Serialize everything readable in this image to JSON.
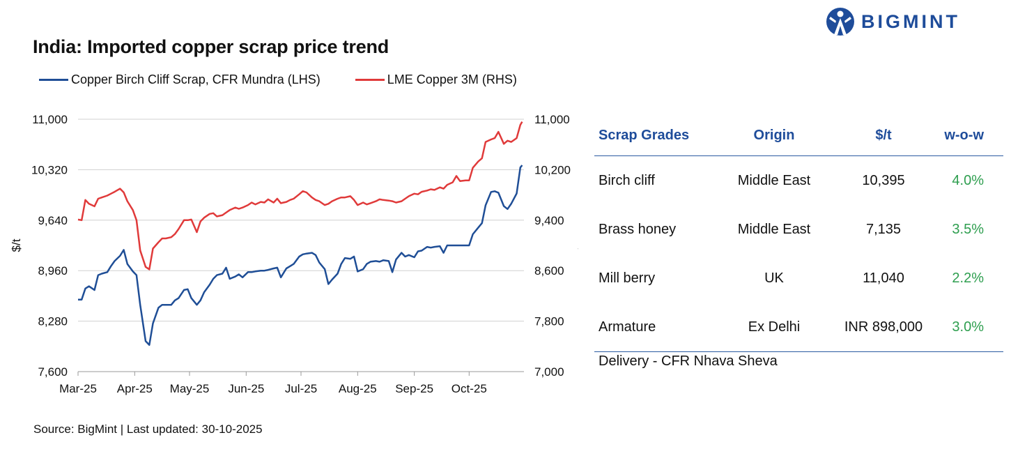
{
  "header": {
    "title": "India: Imported copper scrap price trend",
    "brand": "BIGMINT",
    "brand_color": "#1e4c9a"
  },
  "chart_data": {
    "type": "line",
    "title": "India: Imported copper scrap price trend",
    "x": [
      "2025-03-01",
      "2025-03-03",
      "2025-03-05",
      "2025-03-07",
      "2025-03-10",
      "2025-03-12",
      "2025-03-14",
      "2025-03-17",
      "2025-03-19",
      "2025-03-21",
      "2025-03-24",
      "2025-03-26",
      "2025-03-28",
      "2025-03-31",
      "2025-04-02",
      "2025-04-04",
      "2025-04-07",
      "2025-04-09",
      "2025-04-11",
      "2025-04-14",
      "2025-04-16",
      "2025-04-18",
      "2025-04-21",
      "2025-04-23",
      "2025-04-25",
      "2025-04-28",
      "2025-04-30",
      "2025-05-02",
      "2025-05-05",
      "2025-05-07",
      "2025-05-09",
      "2025-05-12",
      "2025-05-14",
      "2025-05-16",
      "2025-05-19",
      "2025-05-21",
      "2025-05-23",
      "2025-05-26",
      "2025-05-28",
      "2025-05-30",
      "2025-06-02",
      "2025-06-04",
      "2025-06-06",
      "2025-06-09",
      "2025-06-11",
      "2025-06-13",
      "2025-06-16",
      "2025-06-18",
      "2025-06-20",
      "2025-06-23",
      "2025-06-25",
      "2025-06-27",
      "2025-06-30",
      "2025-07-02",
      "2025-07-04",
      "2025-07-07",
      "2025-07-09",
      "2025-07-11",
      "2025-07-14",
      "2025-07-16",
      "2025-07-18",
      "2025-07-21",
      "2025-07-23",
      "2025-07-25",
      "2025-07-28",
      "2025-07-30",
      "2025-08-01",
      "2025-08-04",
      "2025-08-06",
      "2025-08-08",
      "2025-08-11",
      "2025-08-13",
      "2025-08-15",
      "2025-08-18",
      "2025-08-20",
      "2025-08-22",
      "2025-08-25",
      "2025-08-27",
      "2025-08-29",
      "2025-09-01",
      "2025-09-03",
      "2025-09-05",
      "2025-09-08",
      "2025-09-10",
      "2025-09-12",
      "2025-09-15",
      "2025-09-17",
      "2025-09-19",
      "2025-09-22",
      "2025-09-24",
      "2025-09-26",
      "2025-09-29",
      "2025-10-01",
      "2025-10-03",
      "2025-10-06",
      "2025-10-08",
      "2025-10-10",
      "2025-10-13",
      "2025-10-15",
      "2025-10-17",
      "2025-10-20",
      "2025-10-22",
      "2025-10-24",
      "2025-10-27",
      "2025-10-29",
      "2025-10-30"
    ],
    "x_tick_labels": [
      "Mar-25",
      "Apr-25",
      "May-25",
      "Jun-25",
      "Jul-25",
      "Aug-25",
      "Sep-25",
      "Oct-25"
    ],
    "x_tick_dates": [
      "2025-03-01",
      "2025-04-01",
      "2025-05-01",
      "2025-06-01",
      "2025-07-01",
      "2025-08-01",
      "2025-09-01",
      "2025-10-01"
    ],
    "xlim": [
      "2025-03-01",
      "2025-10-31"
    ],
    "y_left": {
      "label": "$/t",
      "ylim": [
        7600,
        11000
      ],
      "ticks": [
        7600,
        8280,
        8960,
        9640,
        10320,
        11000
      ],
      "tick_labels": [
        "7,600",
        "8,280",
        "8,960",
        "9,640",
        "10,320",
        "11,000"
      ]
    },
    "y_right": {
      "label": "$/t",
      "ylim": [
        7000,
        11000
      ],
      "ticks": [
        7000,
        7800,
        8600,
        9400,
        10200,
        11000
      ],
      "tick_labels": [
        "7,000",
        "7,800",
        "8,600",
        "9,400",
        "10,200",
        "11,000"
      ]
    },
    "grid": "horizontal",
    "legend_position": "top-left",
    "series": [
      {
        "name": "Copper Birch Cliff Scrap, CFR Mundra (LHS)",
        "axis": "left",
        "color": "#1f4e96",
        "values": [
          8570,
          8570,
          8720,
          8750,
          8700,
          8900,
          8920,
          8940,
          9020,
          9090,
          9160,
          9240,
          9050,
          8950,
          8900,
          8500,
          8010,
          7960,
          8250,
          8460,
          8500,
          8500,
          8500,
          8560,
          8590,
          8700,
          8710,
          8590,
          8500,
          8560,
          8670,
          8770,
          8850,
          8900,
          8920,
          9000,
          8850,
          8880,
          8910,
          8870,
          8940,
          8940,
          8950,
          8960,
          8960,
          8970,
          8990,
          9000,
          8870,
          8990,
          9020,
          9050,
          9150,
          9180,
          9190,
          9200,
          9170,
          9070,
          8980,
          8780,
          8840,
          8920,
          9050,
          9130,
          9120,
          9150,
          8950,
          8980,
          9050,
          9080,
          9090,
          9080,
          9100,
          9090,
          8940,
          9110,
          9200,
          9150,
          9170,
          9140,
          9220,
          9230,
          9280,
          9270,
          9280,
          9290,
          9200,
          9300,
          9300,
          9300,
          9300,
          9300,
          9300,
          9450,
          9540,
          9600,
          9840,
          10020,
          10030,
          10010,
          9830,
          9790,
          9860,
          10000,
          10350,
          10380
        ]
      },
      {
        "name": "LME Copper 3M (RHS)",
        "axis": "right",
        "color": "#e03a3a",
        "values": [
          9410,
          9400,
          9720,
          9660,
          9620,
          9740,
          9760,
          9790,
          9820,
          9850,
          9900,
          9840,
          9700,
          9560,
          9400,
          8920,
          8660,
          8620,
          8950,
          9050,
          9110,
          9110,
          9130,
          9180,
          9260,
          9400,
          9400,
          9410,
          9210,
          9380,
          9440,
          9500,
          9510,
          9460,
          9480,
          9520,
          9560,
          9600,
          9580,
          9600,
          9640,
          9680,
          9650,
          9690,
          9680,
          9730,
          9680,
          9740,
          9670,
          9690,
          9720,
          9740,
          9810,
          9860,
          9840,
          9760,
          9720,
          9700,
          9640,
          9660,
          9700,
          9740,
          9760,
          9760,
          9780,
          9720,
          9640,
          9680,
          9650,
          9670,
          9700,
          9730,
          9720,
          9710,
          9700,
          9680,
          9700,
          9740,
          9780,
          9820,
          9810,
          9850,
          9870,
          9890,
          9880,
          9920,
          9900,
          9960,
          10000,
          10100,
          10020,
          10030,
          10030,
          10230,
          10330,
          10380,
          10640,
          10680,
          10700,
          10800,
          10610,
          10660,
          10640,
          10700,
          10910,
          10960
        ]
      }
    ]
  },
  "table": {
    "headers": {
      "grade": "Scrap Grades",
      "origin": "Origin",
      "price": "$/t",
      "wow": "w-o-w"
    },
    "rows": [
      {
        "grade": "Birch cliff",
        "origin": "Middle East",
        "price": "10,395",
        "wow": "4.0%"
      },
      {
        "grade": "Brass honey",
        "origin": "Middle East",
        "price": "7,135",
        "wow": "3.5%"
      },
      {
        "grade": "Mill berry",
        "origin": "UK",
        "price": "11,040",
        "wow": "2.2%"
      },
      {
        "grade": "Armature",
        "origin": "Ex Delhi",
        "price": "INR 898,000",
        "wow": "3.0%"
      }
    ],
    "header_color": "#1e4c9a",
    "positive_color": "#2e9e4f"
  },
  "footer": {
    "delivery": "Delivery - CFR Nhava Sheva",
    "source": "Source: BigMint | Last updated: 30-10-2025"
  }
}
